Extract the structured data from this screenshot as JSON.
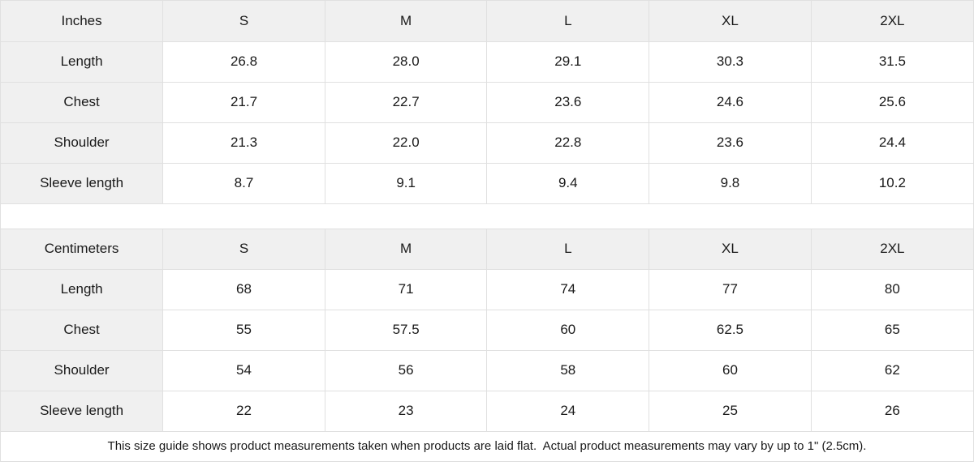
{
  "colors": {
    "header_bg": "#f0f0f0",
    "border": "#e0e0e0",
    "text": "#1a1a1a",
    "bg": "#ffffff"
  },
  "chart_data": [
    {
      "type": "table",
      "unit": "Inches",
      "sizes": [
        "S",
        "M",
        "L",
        "XL",
        "2XL"
      ],
      "rows": [
        {
          "label": "Length",
          "values": [
            "26.8",
            "28.0",
            "29.1",
            "30.3",
            "31.5"
          ]
        },
        {
          "label": "Chest",
          "values": [
            "21.7",
            "22.7",
            "23.6",
            "24.6",
            "25.6"
          ]
        },
        {
          "label": "Shoulder",
          "values": [
            "21.3",
            "22.0",
            "22.8",
            "23.6",
            "24.4"
          ]
        },
        {
          "label": "Sleeve length",
          "values": [
            "8.7",
            "9.1",
            "9.4",
            "9.8",
            "10.2"
          ]
        }
      ]
    },
    {
      "type": "table",
      "unit": "Centimeters",
      "sizes": [
        "S",
        "M",
        "L",
        "XL",
        "2XL"
      ],
      "rows": [
        {
          "label": "Length",
          "values": [
            "68",
            "71",
            "74",
            "77",
            "80"
          ]
        },
        {
          "label": "Chest",
          "values": [
            "55",
            "57.5",
            "60",
            "62.5",
            "65"
          ]
        },
        {
          "label": "Shoulder",
          "values": [
            "54",
            "56",
            "58",
            "60",
            "62"
          ]
        },
        {
          "label": "Sleeve length",
          "values": [
            "22",
            "23",
            "24",
            "25",
            "26"
          ]
        }
      ]
    }
  ],
  "footer": {
    "note": "This size guide shows product measurements taken when products are laid flat.  Actual product measurements may vary by up to 1\" (2.5cm)."
  }
}
